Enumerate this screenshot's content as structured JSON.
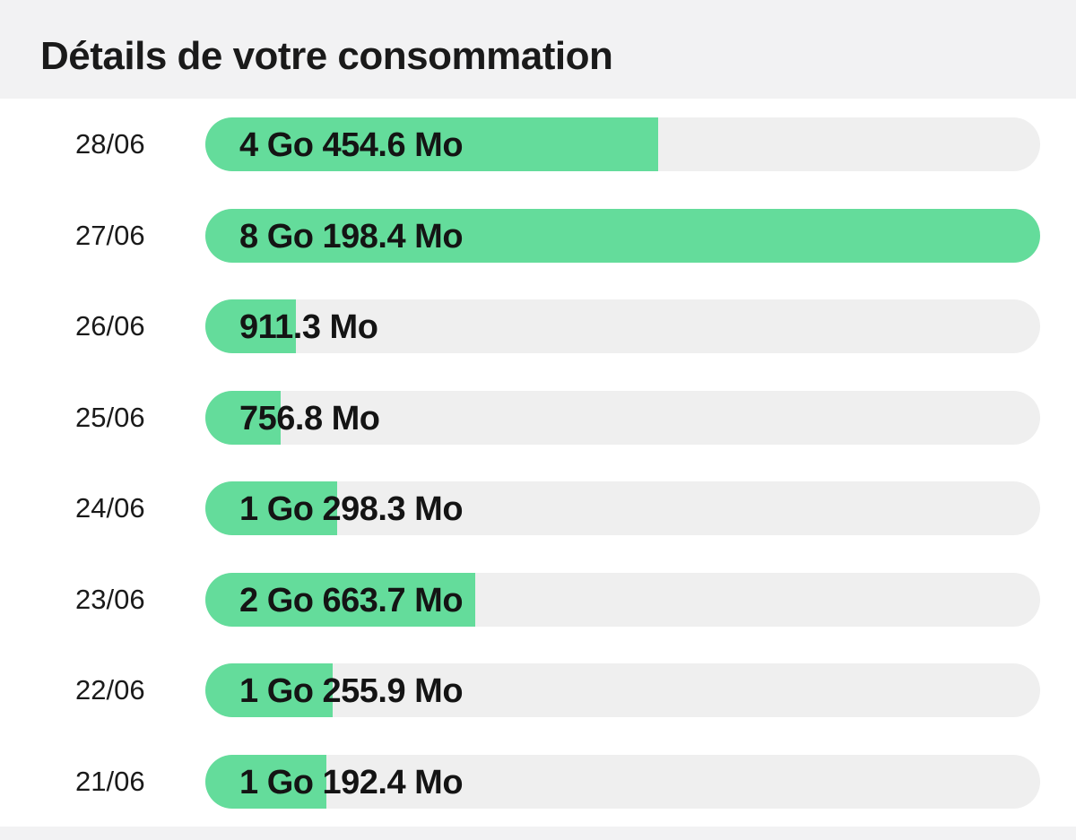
{
  "page": {
    "title": "Détails de votre consommation",
    "fill_color": "#64dc9b",
    "track_color": "#efefef"
  },
  "chart_data": {
    "type": "bar",
    "orientation": "horizontal",
    "unit": "Mo",
    "categories": [
      "28/06",
      "27/06",
      "26/06",
      "25/06",
      "24/06",
      "23/06",
      "22/06",
      "21/06"
    ],
    "labels": [
      "4 Go 454.6 Mo",
      "8 Go 198.4 Mo",
      "911.3 Mo",
      "756.8 Mo",
      "1 Go 298.3 Mo",
      "2 Go 663.7 Mo",
      "1 Go 255.9 Mo",
      "1 Go 192.4 Mo"
    ],
    "values": [
      4550.6,
      8390.4,
      911.3,
      756.8,
      1322.3,
      2711.7,
      1279.9,
      1216.4
    ],
    "max": 8390.4
  }
}
